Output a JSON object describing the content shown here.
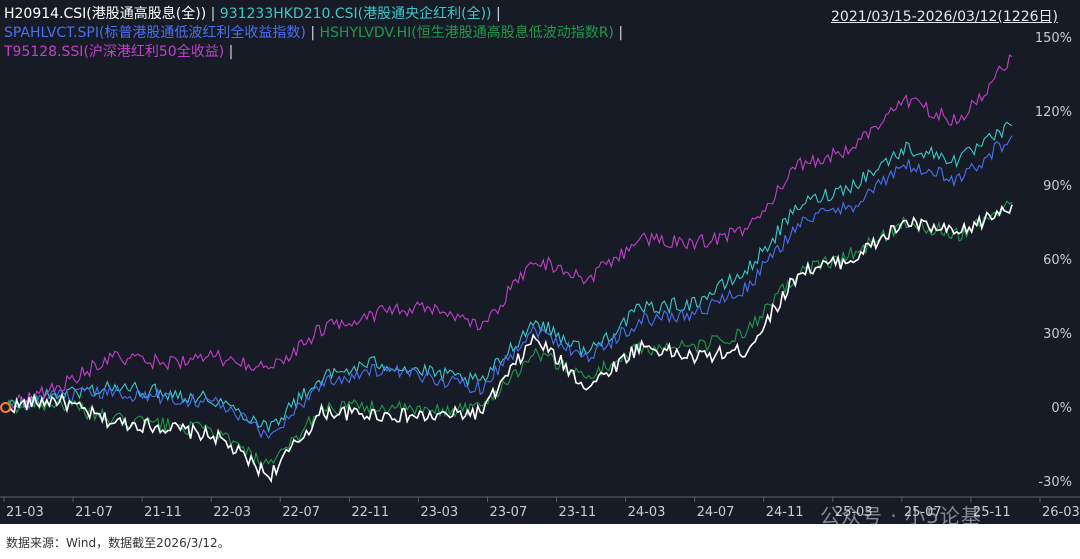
{
  "header": {
    "date_range": "2021/03/15-2026/03/12(1226日)",
    "separator": "|"
  },
  "legend": [
    {
      "label": "H20914.CSI(港股通高股息(全))",
      "color": "#ffffff"
    },
    {
      "label": "931233HKD210.CSI(港股通央企红利(全))",
      "color": "#3cc8c8"
    },
    {
      "label": "SPAHLVCT.SPI(标普港股通低波红利全收益指数)",
      "color": "#4a6ff0"
    },
    {
      "label": "HSHYLVDV.HI(恒生港股通高股息低波动指数R)",
      "color": "#1f9a4a"
    },
    {
      "label": "T95128.SSI(沪深港红利50全收益)",
      "color": "#c040c8"
    }
  ],
  "watermark": "公众号 · 小5论基",
  "footer": {
    "source": "数据来源：Wind，数据截至2026/3/12。"
  },
  "chart_data": {
    "type": "line",
    "x_tick_labels": [
      "21-03",
      "21-07",
      "21-11",
      "22-03",
      "22-07",
      "22-11",
      "23-03",
      "23-07",
      "23-11",
      "24-03",
      "24-07",
      "24-11",
      "25-03",
      "25-07",
      "25-11",
      "26-03"
    ],
    "y_tick_labels": [
      "-30%",
      "0%",
      "30%",
      "60%",
      "90%",
      "120%",
      "150%"
    ],
    "ylim": [
      -30,
      150
    ],
    "grid": false,
    "legend_position": "top-left",
    "series": [
      {
        "name": "H20914.CSI(港股通高股息(全))",
        "values": [
          0,
          3,
          -6,
          -8,
          -12,
          -28,
          -2,
          -3,
          -4,
          -2,
          28,
          8,
          25,
          20,
          23,
          55,
          60,
          75,
          70,
          82
        ]
      },
      {
        "name": "931233HKD210.CSI(港股通央企红利(全))",
        "values": [
          0,
          5,
          8,
          6,
          3,
          -8,
          12,
          18,
          14,
          10,
          35,
          22,
          40,
          42,
          55,
          82,
          90,
          105,
          100,
          114
        ]
      },
      {
        "name": "SPAHLVCT.SPI(标普港股通低波红利全收益指数)",
        "values": [
          0,
          4,
          6,
          4,
          2,
          -12,
          10,
          15,
          12,
          8,
          32,
          20,
          35,
          38,
          48,
          75,
          82,
          98,
          92,
          110
        ]
      },
      {
        "name": "HSHYLVDV.HI(恒生港股通高股息低波动指数R)",
        "values": [
          0,
          2,
          -5,
          -7,
          -10,
          -25,
          0,
          0,
          -2,
          0,
          22,
          12,
          24,
          24,
          30,
          55,
          62,
          75,
          70,
          83
        ]
      },
      {
        "name": "T95128.SSI(沪深港红利50全收益)",
        "values": [
          0,
          8,
          20,
          18,
          20,
          15,
          32,
          38,
          40,
          32,
          60,
          52,
          68,
          66,
          72,
          98,
          105,
          125,
          115,
          142
        ]
      }
    ]
  }
}
